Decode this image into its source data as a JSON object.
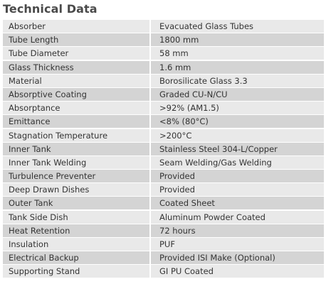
{
  "title": "Technical Data",
  "rows": [
    {
      "label": "Absorber",
      "value": "Evacuated Glass Tubes"
    },
    {
      "label": "Tube Length",
      "value": "1800 mm"
    },
    {
      "label": "Tube Diameter",
      "value": "58 mm"
    },
    {
      "label": "Glass Thickness",
      "value": "1.6 mm"
    },
    {
      "label": "Material",
      "value": "Borosilicate Glass 3.3"
    },
    {
      "label": "Absorptive Coating",
      "value": "Graded CU-N/CU"
    },
    {
      "label": "Absorptance",
      "value": ">92% (AM1.5)"
    },
    {
      "label": "Emittance",
      "value": "<8% (80°C)"
    },
    {
      "label": "Stagnation Temperature",
      "value": ">200°C"
    },
    {
      "label": "Inner Tank",
      "value": "Stainless Steel 304-L/Copper"
    },
    {
      "label": "Inner Tank Welding",
      "value": "Seam Welding/Gas Welding"
    },
    {
      "label": "Turbulence Preventer",
      "value": "Provided"
    },
    {
      "label": "Deep Drawn Dishes",
      "value": "Provided"
    },
    {
      "label": "Outer Tank",
      "value": "Coated Sheet"
    },
    {
      "label": "Tank Side Dish",
      "value": "Aluminum Powder Coated"
    },
    {
      "label": "Heat Retention",
      "value": "72 hours"
    },
    {
      "label": "Insulation",
      "value": "PUF"
    },
    {
      "label": "Electrical Backup",
      "value": "Provided ISI Make (Optional)"
    },
    {
      "label": "Supporting Stand",
      "value": "GI PU Coated"
    }
  ]
}
